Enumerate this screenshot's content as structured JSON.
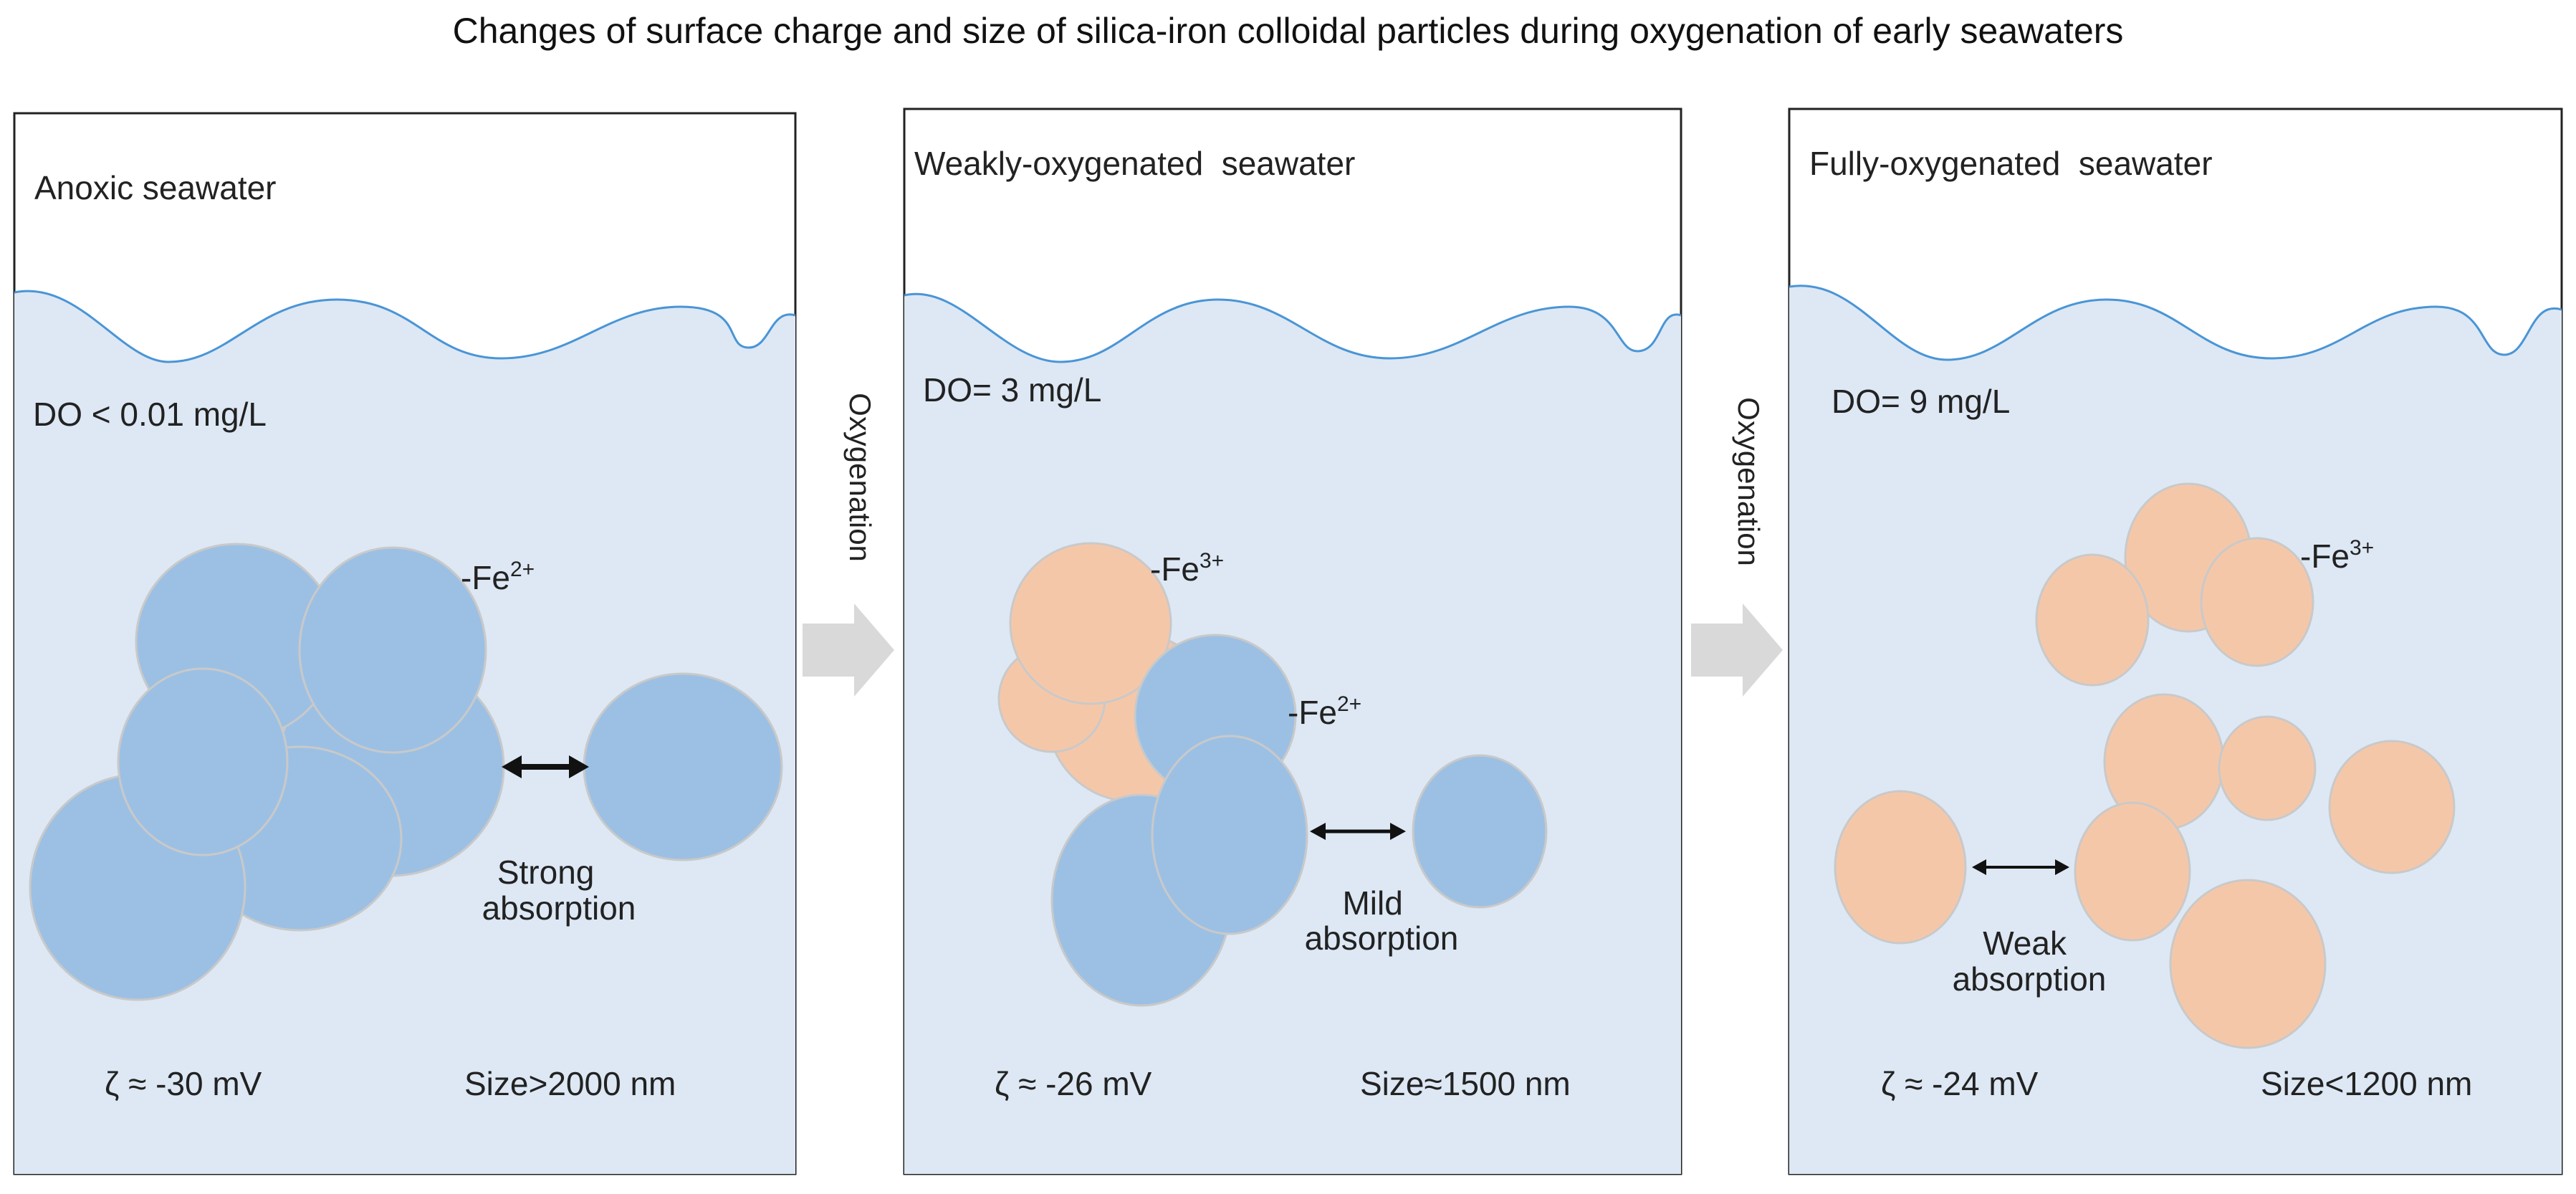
{
  "title": "Changes of surface charge and size of silica-iron colloidal particles during oxygenation of early seawaters",
  "colors": {
    "water": "#dde8f4",
    "wave": "#4a95d6",
    "fe2_particle": "#9cc0e4",
    "fe3_particle": "#f5c7a9",
    "particle_edge": "#c9c9c9",
    "border": "#222222",
    "arrow": "#d9d9d9"
  },
  "transition_label": "Oxygenation",
  "panels": [
    {
      "heading": "Anoxic seawater",
      "do_label": "DO < 0.01 mg/L",
      "ion_labels": [
        {
          "base": "-Fe",
          "sup": "2+"
        }
      ],
      "absorption_label": [
        "Strong",
        "absorption"
      ],
      "zeta_label": "ζ ≈ -30 mV",
      "size_label": "Size>2000 nm"
    },
    {
      "heading": "Weakly-oxygenated  seawater",
      "do_label": "DO= 3 mg/L",
      "ion_labels": [
        {
          "base": "-Fe",
          "sup": "3+"
        },
        {
          "base": "-Fe",
          "sup": "2+"
        }
      ],
      "absorption_label": [
        "Mild",
        "absorption"
      ],
      "zeta_label": "ζ ≈ -26 mV",
      "size_label": "Size≈1500 nm"
    },
    {
      "heading": "Fully-oxygenated  seawater",
      "do_label": "DO= 9 mg/L",
      "ion_labels": [
        {
          "base": "-Fe",
          "sup": "3+"
        }
      ],
      "absorption_label": [
        "Weak",
        "absorption"
      ],
      "zeta_label": "ζ ≈ -24 mV",
      "size_label": "Size<1200 nm"
    }
  ]
}
